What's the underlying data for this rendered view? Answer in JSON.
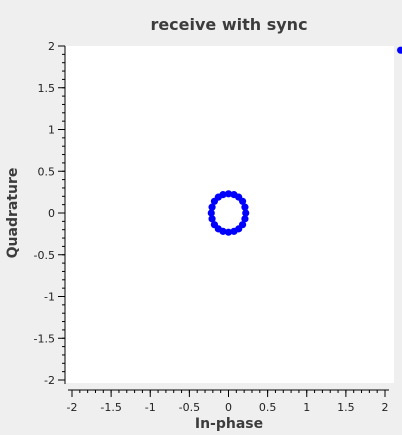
{
  "chart_data": {
    "type": "scatter",
    "title": "receive with sync",
    "xlabel": "In-phase",
    "ylabel": "Quadrature",
    "xlim": [
      -2,
      2
    ],
    "ylim": [
      -2,
      2
    ],
    "xticks": [
      -2,
      -1.5,
      -1,
      -0.5,
      0,
      0.5,
      1,
      1.5,
      2
    ],
    "yticks": [
      -2,
      -1.5,
      -1,
      -0.5,
      0,
      0.5,
      1,
      1.5,
      2
    ],
    "xtick_labels": [
      "-2",
      "-1.5",
      "-1",
      "-0.5",
      "0",
      "0.5",
      "1",
      "1.5",
      "2"
    ],
    "ytick_labels": [
      "-2",
      "-1.5",
      "-1",
      "-0.5",
      "0",
      "0.5",
      "1",
      "1.5",
      "2"
    ],
    "grid": false,
    "legend": "none",
    "marker_color": "#0000ff",
    "points": [
      {
        "x": 0.22,
        "y": 0.0
      },
      {
        "x": 0.21,
        "y": 0.07
      },
      {
        "x": 0.18,
        "y": 0.14
      },
      {
        "x": 0.13,
        "y": 0.19
      },
      {
        "x": 0.07,
        "y": 0.22
      },
      {
        "x": 0.0,
        "y": 0.23
      },
      {
        "x": -0.07,
        "y": 0.22
      },
      {
        "x": -0.13,
        "y": 0.19
      },
      {
        "x": -0.18,
        "y": 0.14
      },
      {
        "x": -0.21,
        "y": 0.07
      },
      {
        "x": -0.22,
        "y": 0.0
      },
      {
        "x": -0.21,
        "y": -0.07
      },
      {
        "x": -0.18,
        "y": -0.14
      },
      {
        "x": -0.13,
        "y": -0.19
      },
      {
        "x": -0.07,
        "y": -0.22
      },
      {
        "x": 0.0,
        "y": -0.23
      },
      {
        "x": 0.07,
        "y": -0.22
      },
      {
        "x": 0.13,
        "y": -0.19
      },
      {
        "x": 0.18,
        "y": -0.14
      },
      {
        "x": 0.21,
        "y": -0.07
      },
      {
        "x": 2.2,
        "y": 1.95
      }
    ]
  }
}
